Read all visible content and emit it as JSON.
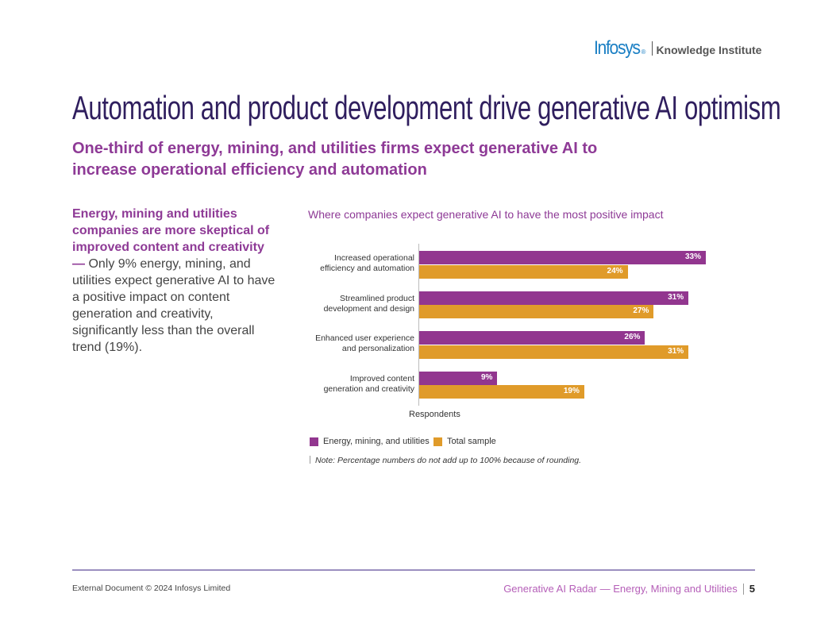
{
  "logo": {
    "brand": "Infosys",
    "registered": "®",
    "division": "Knowledge Institute"
  },
  "title": "Automation and product development drive generative AI optimism",
  "subtitle": "One-third of energy, mining, and utilities firms expect generative AI to increase operational efficiency and automation",
  "sidebar": {
    "bold": "Energy, mining and utilities companies are more skeptical of improved content and creativity —",
    "body": " Only 9% energy, mining, and utilities expect generative AI to have a positive impact on content generation and creativity, significantly less than the overall trend (19%)."
  },
  "chart_data": {
    "type": "bar",
    "orientation": "horizontal",
    "title": "Where companies expect generative AI to have the most positive impact",
    "xlabel": "Respondents",
    "categories": [
      [
        "Increased operational",
        "efficiency and automation"
      ],
      [
        "Streamlined product",
        "development and design"
      ],
      [
        "Enhanced user experience",
        "and personalization"
      ],
      [
        "Improved content",
        "generation and creativity"
      ]
    ],
    "series": [
      {
        "name": "Energy, mining, and utilities",
        "color": "#92368f",
        "values": [
          33,
          31,
          26,
          9
        ],
        "labels": [
          "33%",
          "31%",
          "26%",
          "9%"
        ]
      },
      {
        "name": "Total sample",
        "color": "#e09b2a",
        "values": [
          24,
          27,
          31,
          19
        ],
        "labels": [
          "24%",
          "27%",
          "31%",
          "19%"
        ]
      }
    ],
    "unit": "%",
    "grid": false,
    "legend_position": "bottom-left",
    "note": "Note: Percentage numbers do not add up to 100% because of rounding."
  },
  "footer": {
    "copyright": "External Document © 2024 Infosys Limited",
    "publication": "Generative AI Radar — Energy, Mining and Utilities",
    "page": "5"
  }
}
